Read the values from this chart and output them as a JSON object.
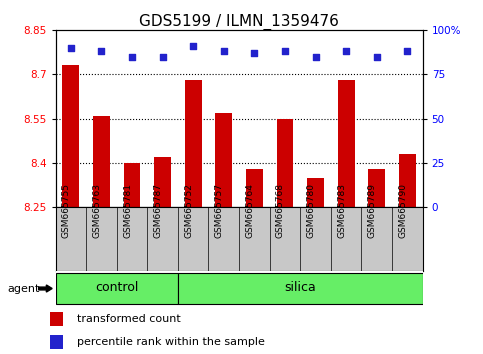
{
  "title": "GDS5199 / ILMN_1359476",
  "samples": [
    "GSM665755",
    "GSM665763",
    "GSM665781",
    "GSM665787",
    "GSM665752",
    "GSM665757",
    "GSM665764",
    "GSM665768",
    "GSM665780",
    "GSM665783",
    "GSM665789",
    "GSM665790"
  ],
  "bar_values": [
    8.73,
    8.56,
    8.4,
    8.42,
    8.68,
    8.57,
    8.38,
    8.55,
    8.35,
    8.68,
    8.38,
    8.43
  ],
  "percentile_values": [
    90,
    88,
    85,
    85,
    91,
    88,
    87,
    88,
    85,
    88,
    85,
    88
  ],
  "ylim_left": [
    8.25,
    8.85
  ],
  "bar_color": "#CC0000",
  "dot_color": "#2222CC",
  "control_count": 4,
  "control_label": "control",
  "silica_label": "silica",
  "agent_label": "agent",
  "group_color": "#66EE66",
  "tick_area_color": "#C8C8C8",
  "left_yticks": [
    8.25,
    8.4,
    8.55,
    8.7,
    8.85
  ],
  "right_ytick_labels": [
    "0",
    "25",
    "50",
    "75",
    "100%"
  ],
  "right_ytick_pcts": [
    0,
    25,
    50,
    75,
    100
  ],
  "legend_items": [
    "transformed count",
    "percentile rank within the sample"
  ],
  "title_fontsize": 11,
  "tick_fontsize": 7.5,
  "sample_fontsize": 6.5,
  "group_fontsize": 9,
  "legend_fontsize": 8
}
